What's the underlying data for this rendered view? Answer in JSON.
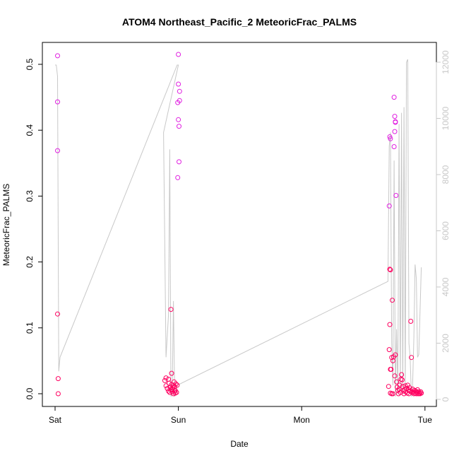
{
  "chart_data": {
    "type": "scatter",
    "title": "ATOM4 Northeast_Pacific_2 MeteoricFrac_PALMS",
    "xlabel": "Date",
    "ylabel": "MeteoricFrac_PALMS",
    "x_ticks": [
      "Sat",
      "Sun",
      "Mon",
      "Tue"
    ],
    "xlim_days": [
      0,
      3.06
    ],
    "ylim": [
      0,
      0.52
    ],
    "y_ticks": [
      "0.0",
      "0.1",
      "0.2",
      "0.3",
      "0.4",
      "0.5"
    ],
    "y2_ticks": [
      "0",
      "2000",
      "4000",
      "6000",
      "8000",
      "10000",
      "12000"
    ],
    "y2lim": [
      0,
      12300
    ],
    "grid": false,
    "colors": {
      "marker_high": "#e020e0",
      "marker_low": "#ff0060",
      "altitude_line": "#c8c8c8",
      "axis": "#000000",
      "axis_right": "#c8c8c8"
    },
    "series": [
      {
        "marker": "open-circle",
        "points": [
          [
            0.02,
            0.513
          ],
          [
            0.02,
            0.443
          ],
          [
            0.02,
            0.369
          ],
          [
            0.02,
            0.121
          ],
          [
            0.025,
            0.023
          ],
          [
            0.025,
            0.0
          ],
          [
            0.89,
            0.02
          ],
          [
            0.9,
            0.012
          ],
          [
            0.91,
            0.008
          ],
          [
            0.92,
            0.004
          ],
          [
            0.925,
            0.016
          ],
          [
            0.93,
            0.002
          ],
          [
            0.935,
            0.01
          ],
          [
            0.94,
            0.006
          ],
          [
            0.945,
            0.014
          ],
          [
            0.95,
            0.003
          ],
          [
            0.955,
            0.009
          ],
          [
            0.96,
            0.0
          ],
          [
            0.965,
            0.018
          ],
          [
            0.97,
            0.011
          ],
          [
            0.975,
            0.005
          ],
          [
            0.98,
            0.015
          ],
          [
            0.985,
            0.002
          ],
          [
            0.99,
            0.013
          ],
          [
            0.9,
            0.024
          ],
          [
            0.92,
            0.022
          ],
          [
            0.94,
            0.128
          ],
          [
            0.945,
            0.031
          ],
          [
            0.95,
            0.007
          ],
          [
            0.96,
            0.012
          ],
          [
            0.97,
            0.004
          ],
          [
            0.975,
            0.001
          ],
          [
            0.995,
            0.442
          ],
          [
            0.995,
            0.328
          ],
          [
            1.0,
            0.515
          ],
          [
            1.0,
            0.47
          ],
          [
            1.0,
            0.416
          ],
          [
            1.005,
            0.406
          ],
          [
            1.005,
            0.352
          ],
          [
            1.01,
            0.459
          ],
          [
            1.01,
            0.445
          ],
          [
            2.71,
            0.285
          ],
          [
            2.715,
            0.189
          ],
          [
            2.72,
            0.188
          ],
          [
            2.715,
            0.105
          ],
          [
            2.71,
            0.067
          ],
          [
            2.72,
            0.037
          ],
          [
            2.725,
            0.037
          ],
          [
            2.73,
            0.055
          ],
          [
            2.735,
            0.142
          ],
          [
            2.74,
            0.05
          ],
          [
            2.745,
            0.056
          ],
          [
            2.705,
            0.011
          ],
          [
            2.72,
            0.001
          ],
          [
            2.73,
            0.0
          ],
          [
            2.74,
            0.0
          ],
          [
            2.715,
            0.39
          ],
          [
            2.72,
            0.387
          ],
          [
            2.75,
            0.45
          ],
          [
            2.755,
            0.421
          ],
          [
            2.76,
            0.413
          ],
          [
            2.76,
            0.412
          ],
          [
            2.755,
            0.398
          ],
          [
            2.75,
            0.375
          ],
          [
            2.765,
            0.301
          ],
          [
            2.76,
            0.059
          ],
          [
            2.755,
            0.027
          ],
          [
            2.77,
            0.018
          ],
          [
            2.775,
            0.01
          ],
          [
            2.78,
            0.005
          ],
          [
            2.785,
            0.0
          ],
          [
            2.79,
            0.007
          ],
          [
            2.795,
            0.013
          ],
          [
            2.8,
            0.002
          ],
          [
            2.805,
            0.022
          ],
          [
            2.81,
            0.029
          ],
          [
            2.815,
            0.021
          ],
          [
            2.82,
            0.011
          ],
          [
            2.825,
            0.004
          ],
          [
            2.83,
            0.0
          ],
          [
            2.835,
            0.006
          ],
          [
            2.84,
            0.012
          ],
          [
            2.845,
            0.003
          ],
          [
            2.85,
            0.008
          ],
          [
            2.855,
            0.001
          ],
          [
            2.86,
            0.013
          ],
          [
            2.865,
            0.006
          ],
          [
            2.87,
            0.0
          ],
          [
            2.875,
            0.009
          ],
          [
            2.88,
            0.004
          ],
          [
            2.885,
            0.11
          ],
          [
            2.89,
            0.055
          ],
          [
            2.895,
            0.002
          ],
          [
            2.9,
            0.007
          ],
          [
            2.905,
            0.003
          ],
          [
            2.91,
            0.0
          ],
          [
            2.915,
            0.005
          ],
          [
            2.92,
            0.001
          ],
          [
            2.925,
            0.004
          ],
          [
            2.93,
            0.0
          ],
          [
            2.935,
            0.002
          ],
          [
            2.94,
            0.006
          ],
          [
            2.945,
            0.0
          ],
          [
            2.95,
            0.003
          ],
          [
            2.955,
            0.001
          ],
          [
            2.96,
            0.0
          ],
          [
            2.965,
            0.003
          ],
          [
            2.97,
            0.001
          ]
        ]
      },
      {
        "axis": "right",
        "line": true,
        "points": [
          [
            0.0,
            11900
          ],
          [
            0.01,
            11900
          ],
          [
            0.02,
            11500
          ],
          [
            0.03,
            1000
          ],
          [
            0.04,
            1500
          ],
          [
            0.99,
            11900
          ],
          [
            1.0,
            11900
          ],
          [
            0.88,
            9500
          ],
          [
            0.9,
            1500
          ],
          [
            0.92,
            3000
          ],
          [
            0.93,
            8900
          ],
          [
            0.94,
            100
          ],
          [
            0.95,
            200
          ],
          [
            0.96,
            3500
          ],
          [
            0.97,
            100
          ],
          [
            0.98,
            200
          ],
          [
            0.99,
            500
          ],
          [
            2.7,
            4200
          ],
          [
            2.71,
            9000
          ],
          [
            2.72,
            9500
          ],
          [
            2.73,
            2000
          ],
          [
            2.74,
            500
          ],
          [
            2.75,
            8500
          ],
          [
            2.76,
            100
          ],
          [
            2.77,
            2500
          ],
          [
            2.78,
            200
          ],
          [
            2.79,
            9800
          ],
          [
            2.8,
            300
          ],
          [
            2.81,
            10200
          ],
          [
            2.82,
            200
          ],
          [
            2.83,
            10400
          ],
          [
            2.84,
            300
          ],
          [
            2.85,
            12000
          ],
          [
            2.86,
            12100
          ],
          [
            2.87,
            2000
          ],
          [
            2.88,
            1500
          ],
          [
            2.89,
            100
          ],
          [
            2.9,
            500
          ],
          [
            2.91,
            2200
          ],
          [
            2.92,
            4800
          ],
          [
            2.93,
            4300
          ],
          [
            2.94,
            1500
          ],
          [
            2.95,
            1600
          ],
          [
            2.97,
            4700
          ]
        ]
      }
    ]
  }
}
